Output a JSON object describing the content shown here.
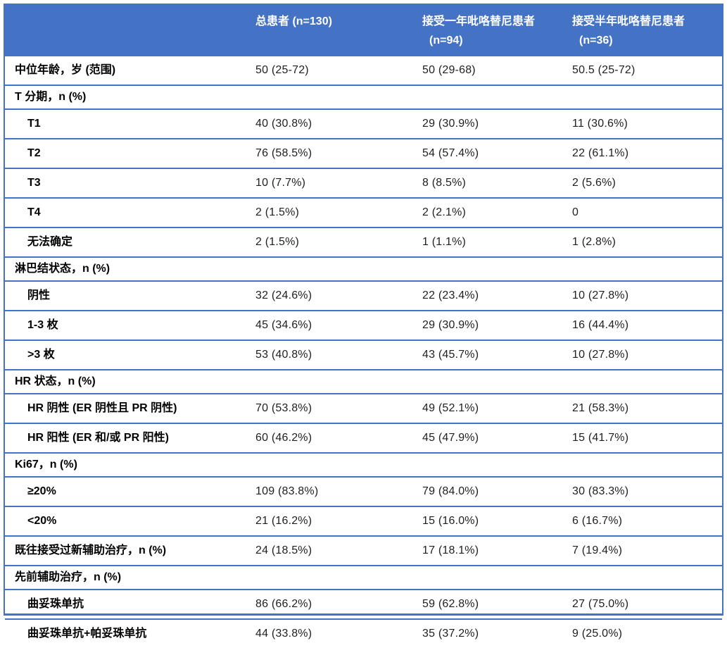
{
  "colors": {
    "header_bg": "#4472C4",
    "border": "#4472C4",
    "header_text": "#FFFFFF",
    "label_text": "#000000",
    "value_text": "#1F1F1F"
  },
  "header": {
    "col1": "",
    "col2": {
      "line1": "总患者 (n=130)",
      "line2": ""
    },
    "col3": {
      "line1": "接受一年吡咯替尼患者",
      "line2": "(n=94)"
    },
    "col4": {
      "line1": "接受半年吡咯替尼患者",
      "line2": "(n=36)"
    }
  },
  "rows": [
    {
      "type": "data",
      "indent": false,
      "label": "中位年龄，岁 (范围)",
      "values": [
        "50 (25-72)",
        "50 (29-68)",
        "50.5 (25-72)"
      ]
    },
    {
      "type": "section",
      "label": "T 分期，n (%)"
    },
    {
      "type": "data",
      "indent": true,
      "label": "T1",
      "values": [
        "40 (30.8%)",
        "29 (30.9%)",
        "11 (30.6%)"
      ]
    },
    {
      "type": "data",
      "indent": true,
      "label": "T2",
      "values": [
        "76 (58.5%)",
        "54 (57.4%)",
        "22 (61.1%)"
      ]
    },
    {
      "type": "data",
      "indent": true,
      "label": "T3",
      "values": [
        "10 (7.7%)",
        "8 (8.5%)",
        "2 (5.6%)"
      ]
    },
    {
      "type": "data",
      "indent": true,
      "label": "T4",
      "values": [
        "2 (1.5%)",
        "2 (2.1%)",
        "0"
      ]
    },
    {
      "type": "data",
      "indent": true,
      "label": "无法确定",
      "values": [
        "2 (1.5%)",
        "1 (1.1%)",
        "1 (2.8%)"
      ]
    },
    {
      "type": "section",
      "label": "淋巴结状态，n (%)"
    },
    {
      "type": "data",
      "indent": true,
      "label": "阴性",
      "values": [
        "32 (24.6%)",
        "22 (23.4%)",
        "10 (27.8%)"
      ]
    },
    {
      "type": "data",
      "indent": true,
      "label": "1-3 枚",
      "values": [
        "45 (34.6%)",
        "29 (30.9%)",
        "16 (44.4%)"
      ]
    },
    {
      "type": "data",
      "indent": true,
      "label": ">3 枚",
      "values": [
        "53 (40.8%)",
        "43 (45.7%)",
        "10 (27.8%)"
      ]
    },
    {
      "type": "section",
      "label": "HR 状态，n (%)"
    },
    {
      "type": "data",
      "indent": true,
      "label": "HR 阴性 (ER 阴性且 PR 阴性)",
      "values": [
        "70 (53.8%)",
        "49 (52.1%)",
        "21 (58.3%)"
      ]
    },
    {
      "type": "data",
      "indent": true,
      "label": "HR 阳性 (ER 和/或 PR 阳性)",
      "values": [
        "60 (46.2%)",
        "45 (47.9%)",
        "15 (41.7%)"
      ]
    },
    {
      "type": "section",
      "label": "Ki67，n (%)"
    },
    {
      "type": "data",
      "indent": true,
      "label": "≥20%",
      "values": [
        "109 (83.8%)",
        "79 (84.0%)",
        "30 (83.3%)"
      ]
    },
    {
      "type": "data",
      "indent": true,
      "label": "<20%",
      "values": [
        "21 (16.2%)",
        "15 (16.0%)",
        "6 (16.7%)"
      ]
    },
    {
      "type": "data",
      "indent": false,
      "label": "既往接受过新辅助治疗，n (%)",
      "values": [
        "24 (18.5%)",
        "17 (18.1%)",
        "7 (19.4%)"
      ]
    },
    {
      "type": "section",
      "label": "先前辅助治疗，n (%)"
    },
    {
      "type": "data",
      "indent": true,
      "label": "曲妥珠单抗",
      "values": [
        "86 (66.2%)",
        "59 (62.8%)",
        "27 (75.0%)"
      ]
    },
    {
      "type": "data",
      "indent": true,
      "label": "曲妥珠单抗+帕妥珠单抗",
      "values": [
        "44 (33.8%)",
        "35 (37.2%)",
        "9 (25.0%)"
      ]
    }
  ]
}
